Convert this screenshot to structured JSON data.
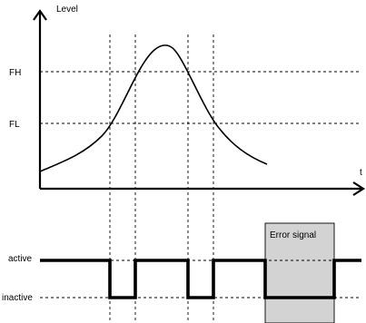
{
  "top_chart": {
    "y_axis_label": "Level",
    "x_axis_label": "t",
    "threshold_high_label": "FH",
    "threshold_low_label": "FL"
  },
  "bottom_chart": {
    "state_high_label": "active",
    "state_low_label": "inactive",
    "error_label": "Error signal"
  },
  "colors": {
    "ink": "#000000",
    "error_fill": "#d3d3d3",
    "background": "#ffffff"
  }
}
